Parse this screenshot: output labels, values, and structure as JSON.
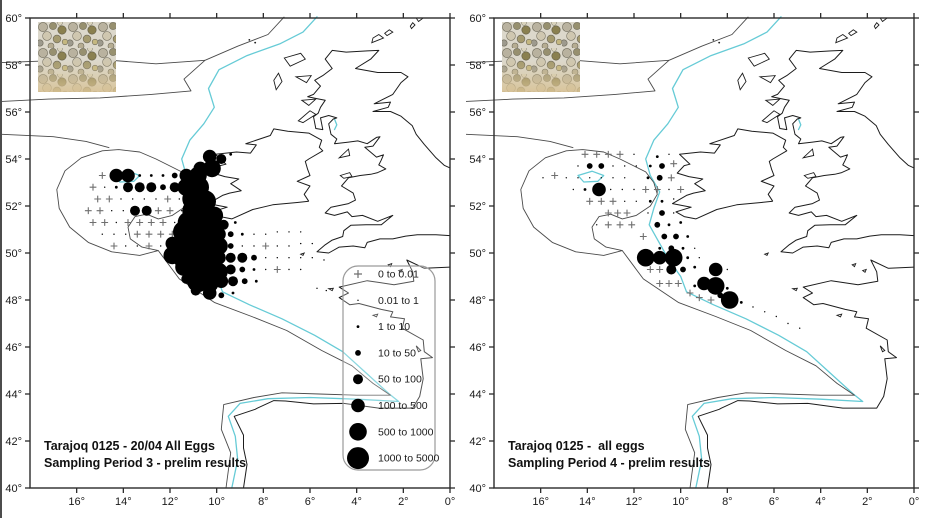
{
  "figure": {
    "panels": [
      {
        "id": "left",
        "title_line1": "Tarajoq 0125 - 20/04 All Eggs",
        "title_line2": "Sampling Period 3 - prelim results",
        "has_legend": true
      },
      {
        "id": "right",
        "title_line1": "Tarajoq 0125 -  all eggs",
        "title_line2": "Sampling Period 4 - prelim results",
        "has_legend": false
      }
    ],
    "axes": {
      "lat_ticks": [
        {
          "v": 60,
          "label": "60°"
        },
        {
          "v": 58,
          "label": "58°"
        },
        {
          "v": 56,
          "label": "56°"
        },
        {
          "v": 54,
          "label": "54°"
        },
        {
          "v": 52,
          "label": "52°"
        },
        {
          "v": 50,
          "label": "50°"
        },
        {
          "v": 48,
          "label": "48°"
        },
        {
          "v": 46,
          "label": "46°"
        },
        {
          "v": 44,
          "label": "44°"
        },
        {
          "v": 42,
          "label": "42°"
        },
        {
          "v": 40,
          "label": "40°"
        }
      ],
      "lon_ticks": [
        {
          "v": -16,
          "label": "16°"
        },
        {
          "v": -14,
          "label": "14°"
        },
        {
          "v": -12,
          "label": "12°"
        },
        {
          "v": -10,
          "label": "10°"
        },
        {
          "v": -8,
          "label": "8°"
        },
        {
          "v": -6,
          "label": "6°"
        },
        {
          "v": -4,
          "label": "4°"
        },
        {
          "v": -2,
          "label": "2°"
        },
        {
          "v": 0,
          "label": "0°"
        }
      ]
    },
    "legend": {
      "classes": [
        "0 to 0.01",
        "0.01 to 1",
        "1 to 10",
        "10 to 50",
        "50 to 100",
        "100 to 500",
        "500 to 1000",
        "1000 to 5000"
      ],
      "zero_symbol": "+",
      "radii": [
        0,
        0.7,
        1.4,
        2.9,
        5.0,
        6.8,
        8.8,
        11.0
      ]
    },
    "colors": {
      "coast": "#1c1c1c",
      "depth_contour": "#4a4a4a",
      "shelf_edge_cyan": "#66cbd6",
      "station_dot": "#000000",
      "zero_marker": "#6f6f6f",
      "legend_border": "#9a9a9a",
      "frame": "#2b2b2b"
    }
  },
  "chart_data": [
    {
      "type": "scatter",
      "title": "Tarajoq 0125 - 20/04 All Eggs — Sampling Period 3 - prelim results",
      "projection": "equirectangular",
      "lon_range": [
        -18,
        0
      ],
      "lat_range": [
        40,
        60
      ],
      "value_classes": [
        "0 to 0.01",
        "0.01 to 1",
        "1 to 10",
        "10 to 50",
        "50 to 100",
        "100 to 500",
        "500 to 1000",
        "1000 to 5000"
      ],
      "stations": [
        [
          -10.3,
          54.1,
          5
        ],
        [
          -9.8,
          54.0,
          4
        ],
        [
          -9.4,
          54.2,
          2
        ],
        [
          -10.7,
          53.6,
          5
        ],
        [
          -10.2,
          53.6,
          6
        ],
        [
          -14.9,
          53.3,
          0
        ],
        [
          -14.3,
          53.3,
          5
        ],
        [
          -13.8,
          53.3,
          5
        ],
        [
          -13.3,
          53.3,
          2
        ],
        [
          -12.8,
          53.3,
          2
        ],
        [
          -12.3,
          53.3,
          2
        ],
        [
          -11.8,
          53.3,
          3
        ],
        [
          -11.3,
          53.3,
          5
        ],
        [
          -10.8,
          53.3,
          6
        ],
        [
          -15.3,
          52.8,
          0
        ],
        [
          -14.8,
          52.8,
          1
        ],
        [
          -14.3,
          52.8,
          2
        ],
        [
          -13.8,
          52.8,
          4
        ],
        [
          -13.3,
          52.8,
          4
        ],
        [
          -12.8,
          52.8,
          4
        ],
        [
          -12.3,
          52.8,
          3
        ],
        [
          -11.8,
          52.8,
          4
        ],
        [
          -11.3,
          52.8,
          6
        ],
        [
          -10.8,
          52.8,
          7
        ],
        [
          -15.1,
          52.3,
          0
        ],
        [
          -14.6,
          52.3,
          0
        ],
        [
          -14.1,
          52.3,
          1
        ],
        [
          -13.6,
          52.3,
          1
        ],
        [
          -13.1,
          52.3,
          1
        ],
        [
          -12.6,
          52.3,
          1
        ],
        [
          -12.1,
          52.3,
          0
        ],
        [
          -11.6,
          52.3,
          1
        ],
        [
          -11.0,
          52.3,
          7
        ],
        [
          -10.5,
          52.2,
          7
        ],
        [
          -15.5,
          51.8,
          0
        ],
        [
          -15.0,
          51.8,
          0
        ],
        [
          -14.5,
          51.8,
          1
        ],
        [
          -14.0,
          51.8,
          1
        ],
        [
          -13.5,
          51.8,
          4
        ],
        [
          -13.0,
          51.8,
          4
        ],
        [
          -12.5,
          51.8,
          0
        ],
        [
          -12.0,
          51.8,
          0
        ],
        [
          -11.5,
          51.8,
          1
        ],
        [
          -11.0,
          51.8,
          7
        ],
        [
          -10.6,
          51.7,
          7
        ],
        [
          -10.1,
          51.6,
          6
        ],
        [
          -15.3,
          51.3,
          0
        ],
        [
          -14.8,
          51.3,
          0
        ],
        [
          -14.3,
          51.3,
          1
        ],
        [
          -13.8,
          51.3,
          0
        ],
        [
          -13.3,
          51.3,
          0
        ],
        [
          -12.8,
          51.3,
          0
        ],
        [
          -12.3,
          51.3,
          0
        ],
        [
          -11.8,
          51.3,
          1
        ],
        [
          -11.2,
          51.3,
          7
        ],
        [
          -10.7,
          51.2,
          7
        ],
        [
          -10.2,
          51.1,
          7
        ],
        [
          -9.7,
          51.2,
          4
        ],
        [
          -9.2,
          51.3,
          2
        ],
        [
          -14.9,
          50.8,
          1
        ],
        [
          -14.4,
          50.8,
          1
        ],
        [
          -13.9,
          50.8,
          1
        ],
        [
          -13.4,
          50.8,
          0
        ],
        [
          -12.9,
          50.8,
          0
        ],
        [
          -12.4,
          50.8,
          0
        ],
        [
          -11.9,
          50.8,
          0
        ],
        [
          -11.4,
          50.9,
          7
        ],
        [
          -10.9,
          50.8,
          7
        ],
        [
          -10.4,
          50.7,
          7
        ],
        [
          -9.9,
          50.8,
          5
        ],
        [
          -9.4,
          50.8,
          3
        ],
        [
          -8.9,
          50.8,
          2
        ],
        [
          -8.4,
          50.8,
          1
        ],
        [
          -7.9,
          50.8,
          1
        ],
        [
          -7.4,
          50.9,
          1
        ],
        [
          -6.9,
          50.9,
          1
        ],
        [
          -6.4,
          50.9,
          1
        ],
        [
          -14.4,
          50.3,
          0
        ],
        [
          -13.9,
          50.3,
          1
        ],
        [
          -13.4,
          50.3,
          1
        ],
        [
          -12.9,
          50.3,
          0
        ],
        [
          -12.4,
          50.3,
          1
        ],
        [
          -11.9,
          50.4,
          5
        ],
        [
          -11.4,
          50.3,
          7
        ],
        [
          -10.9,
          50.3,
          7
        ],
        [
          -10.4,
          50.2,
          7
        ],
        [
          -9.9,
          50.3,
          6
        ],
        [
          -9.4,
          50.3,
          3
        ],
        [
          -8.9,
          50.3,
          1
        ],
        [
          -8.4,
          50.3,
          1
        ],
        [
          -7.9,
          50.3,
          0
        ],
        [
          -7.4,
          50.3,
          1
        ],
        [
          -6.9,
          50.3,
          1
        ],
        [
          -6.4,
          50.4,
          1
        ],
        [
          -5.9,
          50.4,
          1
        ],
        [
          -11.9,
          49.9,
          6
        ],
        [
          -11.4,
          49.8,
          7
        ],
        [
          -10.9,
          49.8,
          7
        ],
        [
          -10.4,
          49.8,
          7
        ],
        [
          -9.9,
          49.8,
          5
        ],
        [
          -9.4,
          49.8,
          4
        ],
        [
          -8.9,
          49.8,
          4
        ],
        [
          -8.4,
          49.8,
          3
        ],
        [
          -7.9,
          49.8,
          1
        ],
        [
          -7.4,
          49.8,
          1
        ],
        [
          -6.9,
          49.8,
          1
        ],
        [
          -6.4,
          49.8,
          1
        ],
        [
          -5.9,
          49.8,
          1
        ],
        [
          -5.4,
          49.7,
          1
        ],
        [
          -11.4,
          49.4,
          6
        ],
        [
          -10.9,
          49.3,
          7
        ],
        [
          -10.4,
          49.3,
          7
        ],
        [
          -9.9,
          49.2,
          6
        ],
        [
          -9.4,
          49.3,
          4
        ],
        [
          -8.9,
          49.3,
          3
        ],
        [
          -8.4,
          49.3,
          2
        ],
        [
          -7.9,
          49.3,
          1
        ],
        [
          -7.4,
          49.3,
          0
        ],
        [
          -6.9,
          49.3,
          1
        ],
        [
          -6.4,
          49.3,
          1
        ],
        [
          -11.3,
          48.9,
          4
        ],
        [
          -10.8,
          48.8,
          7
        ],
        [
          -10.3,
          48.7,
          6
        ],
        [
          -9.8,
          48.8,
          5
        ],
        [
          -9.3,
          48.8,
          4
        ],
        [
          -8.8,
          48.8,
          3
        ],
        [
          -8.3,
          48.8,
          2
        ],
        [
          -10.9,
          48.4,
          4
        ],
        [
          -10.3,
          48.3,
          5
        ],
        [
          -9.8,
          48.2,
          3
        ],
        [
          -9.3,
          48.3,
          2
        ],
        [
          -5.7,
          48.5,
          1
        ],
        [
          -5.3,
          48.4,
          1
        ]
      ]
    },
    {
      "type": "scatter",
      "title": "Tarajoq 0125 - all eggs — Sampling Period 4 - prelim results",
      "projection": "equirectangular",
      "lon_range": [
        -18,
        0
      ],
      "lat_range": [
        40,
        60
      ],
      "value_classes": [
        "0 to 0.01",
        "0.01 to 1",
        "1 to 10",
        "10 to 50",
        "50 to 100",
        "100 to 500",
        "500 to 1000",
        "1000 to 5000"
      ],
      "stations": [
        [
          -14.1,
          54.2,
          0
        ],
        [
          -13.6,
          54.2,
          0
        ],
        [
          -13.1,
          54.2,
          0
        ],
        [
          -12.6,
          54.2,
          0
        ],
        [
          -12.0,
          54.2,
          1
        ],
        [
          -11.0,
          54.1,
          2
        ],
        [
          -10.5,
          54.2,
          1
        ],
        [
          -14.4,
          53.7,
          1
        ],
        [
          -13.9,
          53.7,
          3
        ],
        [
          -13.4,
          53.7,
          3
        ],
        [
          -12.9,
          53.7,
          1
        ],
        [
          -12.4,
          53.7,
          1
        ],
        [
          -11.9,
          53.7,
          1
        ],
        [
          -11.3,
          53.7,
          2
        ],
        [
          -10.8,
          53.7,
          3
        ],
        [
          -10.3,
          53.8,
          0
        ],
        [
          -15.9,
          53.2,
          1
        ],
        [
          -15.4,
          53.3,
          0
        ],
        [
          -14.9,
          53.2,
          1
        ],
        [
          -14.4,
          53.2,
          1
        ],
        [
          -13.9,
          53.2,
          1
        ],
        [
          -13.4,
          53.2,
          1
        ],
        [
          -12.9,
          53.2,
          1
        ],
        [
          -12.4,
          53.2,
          1
        ],
        [
          -11.4,
          53.2,
          2
        ],
        [
          -10.9,
          53.2,
          3
        ],
        [
          -10.4,
          53.2,
          0
        ],
        [
          -14.6,
          52.7,
          1
        ],
        [
          -14.1,
          52.7,
          2
        ],
        [
          -13.5,
          52.7,
          5
        ],
        [
          -13.0,
          52.7,
          1
        ],
        [
          -12.5,
          52.7,
          1
        ],
        [
          -12.0,
          52.7,
          1
        ],
        [
          -11.5,
          52.7,
          0
        ],
        [
          -11.0,
          52.7,
          0
        ],
        [
          -10.5,
          52.7,
          1
        ],
        [
          -10.0,
          52.7,
          0
        ],
        [
          -13.9,
          52.2,
          0
        ],
        [
          -13.4,
          52.2,
          0
        ],
        [
          -12.9,
          52.2,
          0
        ],
        [
          -12.4,
          52.2,
          1
        ],
        [
          -11.9,
          52.2,
          1
        ],
        [
          -11.3,
          52.2,
          2
        ],
        [
          -10.8,
          52.2,
          2
        ],
        [
          -10.3,
          52.3,
          1
        ],
        [
          -13.1,
          51.7,
          0
        ],
        [
          -12.7,
          51.7,
          0
        ],
        [
          -12.3,
          51.7,
          0
        ],
        [
          -11.4,
          51.7,
          1
        ],
        [
          -10.8,
          51.7,
          3
        ],
        [
          -10.3,
          51.7,
          1
        ],
        [
          -13.6,
          51.2,
          1
        ],
        [
          -13.1,
          51.2,
          0
        ],
        [
          -12.6,
          51.2,
          0
        ],
        [
          -12.1,
          51.2,
          0
        ],
        [
          -11.0,
          51.2,
          3
        ],
        [
          -10.5,
          51.2,
          2
        ],
        [
          -10.0,
          51.3,
          2
        ],
        [
          -11.6,
          50.7,
          0
        ],
        [
          -10.7,
          50.7,
          3
        ],
        [
          -10.2,
          50.7,
          3
        ],
        [
          -9.7,
          50.7,
          2
        ],
        [
          -10.9,
          50.2,
          2
        ],
        [
          -10.4,
          50.2,
          3
        ],
        [
          -9.9,
          50.2,
          2
        ],
        [
          -9.4,
          50.2,
          1
        ],
        [
          -11.5,
          49.8,
          6
        ],
        [
          -10.9,
          49.8,
          5
        ],
        [
          -10.3,
          49.8,
          6
        ],
        [
          -9.7,
          49.8,
          2
        ],
        [
          -9.2,
          49.8,
          1
        ],
        [
          -11.3,
          49.3,
          0
        ],
        [
          -10.9,
          49.3,
          0
        ],
        [
          -10.4,
          49.3,
          4
        ],
        [
          -9.9,
          49.3,
          3
        ],
        [
          -9.4,
          49.4,
          2
        ],
        [
          -8.5,
          49.3,
          5
        ],
        [
          -8.0,
          49.3,
          1
        ],
        [
          -10.9,
          48.7,
          0
        ],
        [
          -10.5,
          48.7,
          0
        ],
        [
          -10.1,
          48.7,
          0
        ],
        [
          -9.4,
          48.6,
          2
        ],
        [
          -9.0,
          48.7,
          5
        ],
        [
          -8.5,
          48.6,
          6
        ],
        [
          -8.0,
          48.5,
          2
        ],
        [
          -9.6,
          48.3,
          0
        ],
        [
          -9.2,
          48.1,
          0
        ],
        [
          -8.7,
          48.0,
          0
        ],
        [
          -8.3,
          48.2,
          3
        ],
        [
          -7.9,
          48.0,
          6
        ],
        [
          -7.4,
          47.9,
          2
        ],
        [
          -6.9,
          47.7,
          1
        ],
        [
          -6.4,
          47.5,
          1
        ],
        [
          -5.9,
          47.3,
          1
        ],
        [
          -5.4,
          47.0,
          1
        ],
        [
          -4.9,
          46.8,
          1
        ]
      ]
    }
  ]
}
